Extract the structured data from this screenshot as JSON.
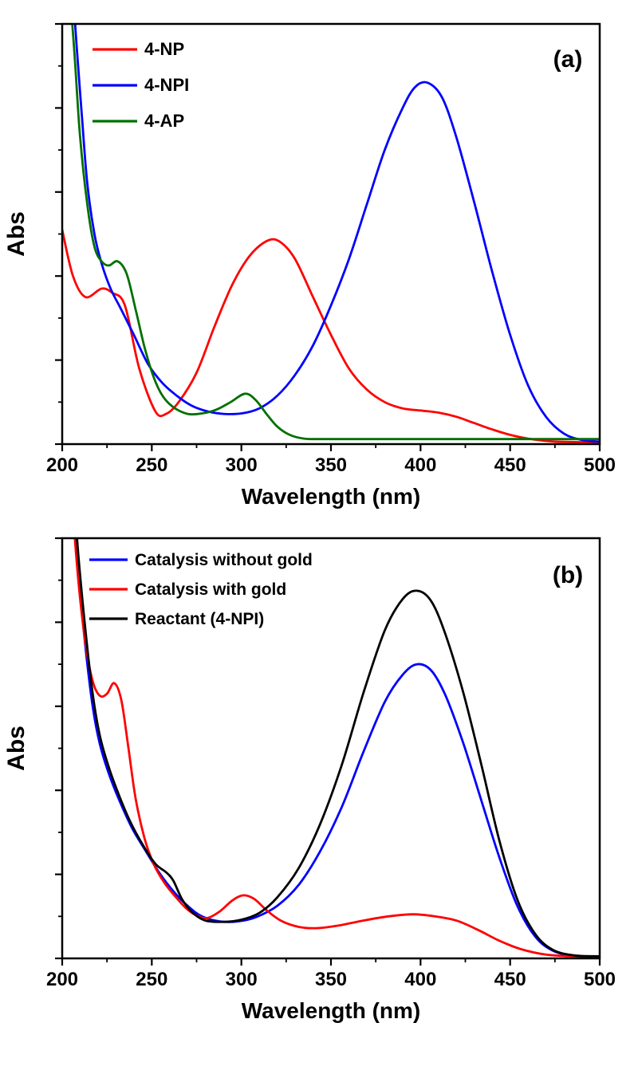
{
  "figure": {
    "background": "#ffffff",
    "axis_color": "#000000"
  },
  "chart_data": [
    {
      "type": "line",
      "panel_label": "(a)",
      "xlabel": "Wavelength (nm)",
      "ylabel": "Abs",
      "xlim": [
        200,
        500
      ],
      "ylim": [
        0,
        1.0
      ],
      "xticks": [
        200,
        250,
        300,
        350,
        400,
        450,
        500
      ],
      "xtick_major": 50,
      "xtick_minor": 25,
      "ytick_major": 0.2,
      "ytick_minor": 0.1,
      "grid": false,
      "legend_position": "top-left",
      "series": [
        {
          "name": "4-NP",
          "color": "#ff0000",
          "x": [
            200,
            206,
            213,
            222,
            228,
            235,
            243,
            252,
            258,
            265,
            275,
            285,
            295,
            305,
            315,
            322,
            330,
            340,
            350,
            360,
            370,
            380,
            390,
            400,
            410,
            420,
            430,
            440,
            450,
            460,
            475,
            500
          ],
          "y": [
            0.51,
            0.4,
            0.35,
            0.37,
            0.36,
            0.33,
            0.18,
            0.078,
            0.072,
            0.1,
            0.17,
            0.28,
            0.38,
            0.45,
            0.485,
            0.48,
            0.44,
            0.35,
            0.26,
            0.18,
            0.13,
            0.1,
            0.085,
            0.08,
            0.075,
            0.065,
            0.05,
            0.035,
            0.022,
            0.013,
            0.006,
            0.004
          ]
        },
        {
          "name": "4-NPI",
          "color": "#0000ff",
          "x": [
            200,
            204,
            208,
            211,
            214,
            218,
            222,
            227,
            233,
            240,
            248,
            256,
            264,
            272,
            281,
            290,
            300,
            310,
            320,
            330,
            340,
            350,
            360,
            370,
            380,
            390,
            397,
            404,
            412,
            420,
            430,
            440,
            450,
            460,
            470,
            480,
            490,
            500
          ],
          "y": [
            1.45,
            1.2,
            0.95,
            0.78,
            0.62,
            0.5,
            0.43,
            0.37,
            0.32,
            0.26,
            0.19,
            0.145,
            0.115,
            0.092,
            0.078,
            0.072,
            0.073,
            0.085,
            0.115,
            0.165,
            0.235,
            0.33,
            0.44,
            0.57,
            0.7,
            0.8,
            0.85,
            0.86,
            0.825,
            0.73,
            0.575,
            0.41,
            0.26,
            0.14,
            0.065,
            0.025,
            0.01,
            0.006
          ]
        },
        {
          "name": "4-AP",
          "color": "#007000",
          "x": [
            200,
            204,
            207,
            210,
            214,
            218,
            222,
            226,
            231,
            236,
            241,
            246,
            251,
            256,
            262,
            270,
            278,
            286,
            294,
            302,
            308,
            314,
            320,
            327,
            335,
            345,
            360,
            380,
            410,
            450,
            500
          ],
          "y": [
            1.4,
            1.1,
            0.92,
            0.73,
            0.57,
            0.47,
            0.435,
            0.425,
            0.435,
            0.405,
            0.32,
            0.23,
            0.16,
            0.115,
            0.088,
            0.072,
            0.073,
            0.082,
            0.1,
            0.12,
            0.105,
            0.072,
            0.042,
            0.022,
            0.013,
            0.012,
            0.012,
            0.012,
            0.012,
            0.012,
            0.012
          ]
        }
      ]
    },
    {
      "type": "line",
      "panel_label": "(b)",
      "xlabel": "Wavelength (nm)",
      "ylabel": "Abs",
      "xlim": [
        200,
        500
      ],
      "ylim": [
        0,
        1.0
      ],
      "xticks": [
        200,
        250,
        300,
        350,
        400,
        450,
        500
      ],
      "xtick_major": 50,
      "xtick_minor": 25,
      "ytick_major": 0.2,
      "ytick_minor": 0.1,
      "grid": false,
      "legend_position": "top-left",
      "series": [
        {
          "name": "Catalysis without gold",
          "color": "#0000ff",
          "x": [
            200,
            205,
            209,
            213,
            217,
            221,
            226,
            232,
            239,
            246,
            254,
            262,
            270,
            278,
            288,
            298,
            308,
            320,
            332,
            344,
            356,
            368,
            380,
            390,
            398,
            406,
            414,
            424,
            434,
            444,
            454,
            464,
            474,
            486,
            500
          ],
          "y": [
            1.45,
            1.15,
            0.92,
            0.74,
            0.6,
            0.51,
            0.44,
            0.375,
            0.31,
            0.26,
            0.205,
            0.16,
            0.125,
            0.1,
            0.088,
            0.088,
            0.098,
            0.125,
            0.175,
            0.255,
            0.36,
            0.49,
            0.61,
            0.675,
            0.7,
            0.685,
            0.625,
            0.51,
            0.375,
            0.24,
            0.125,
            0.052,
            0.018,
            0.006,
            0.004
          ]
        },
        {
          "name": "Catalysis with gold",
          "color": "#ff0000",
          "x": [
            200,
            205,
            209,
            213,
            217,
            221,
            225,
            229,
            233,
            237,
            241,
            246,
            251,
            257,
            263,
            269,
            275,
            281,
            288,
            295,
            301,
            307,
            314,
            322,
            332,
            342,
            354,
            368,
            382,
            396,
            408,
            420,
            432,
            444,
            456,
            470,
            485,
            500
          ],
          "y": [
            1.45,
            1.12,
            0.9,
            0.75,
            0.66,
            0.625,
            0.63,
            0.655,
            0.615,
            0.5,
            0.38,
            0.285,
            0.225,
            0.18,
            0.148,
            0.12,
            0.102,
            0.096,
            0.112,
            0.138,
            0.15,
            0.142,
            0.115,
            0.09,
            0.075,
            0.072,
            0.078,
            0.09,
            0.1,
            0.105,
            0.1,
            0.09,
            0.068,
            0.042,
            0.022,
            0.009,
            0.005,
            0.004
          ]
        },
        {
          "name": "Reactant (4-NPI)",
          "color": "#000000",
          "x": [
            200,
            205,
            209,
            213,
            217,
            221,
            226,
            232,
            238,
            245,
            252,
            258,
            262,
            267,
            273,
            280,
            290,
            300,
            310,
            320,
            332,
            344,
            356,
            368,
            380,
            390,
            398,
            406,
            414,
            424,
            434,
            444,
            454,
            464,
            474,
            486,
            500
          ],
          "y": [
            1.45,
            1.18,
            0.96,
            0.78,
            0.63,
            0.53,
            0.455,
            0.385,
            0.325,
            0.27,
            0.225,
            0.205,
            0.185,
            0.14,
            0.108,
            0.09,
            0.087,
            0.092,
            0.108,
            0.145,
            0.215,
            0.32,
            0.46,
            0.63,
            0.78,
            0.855,
            0.875,
            0.85,
            0.77,
            0.63,
            0.46,
            0.28,
            0.14,
            0.058,
            0.02,
            0.007,
            0.005
          ]
        }
      ]
    }
  ]
}
